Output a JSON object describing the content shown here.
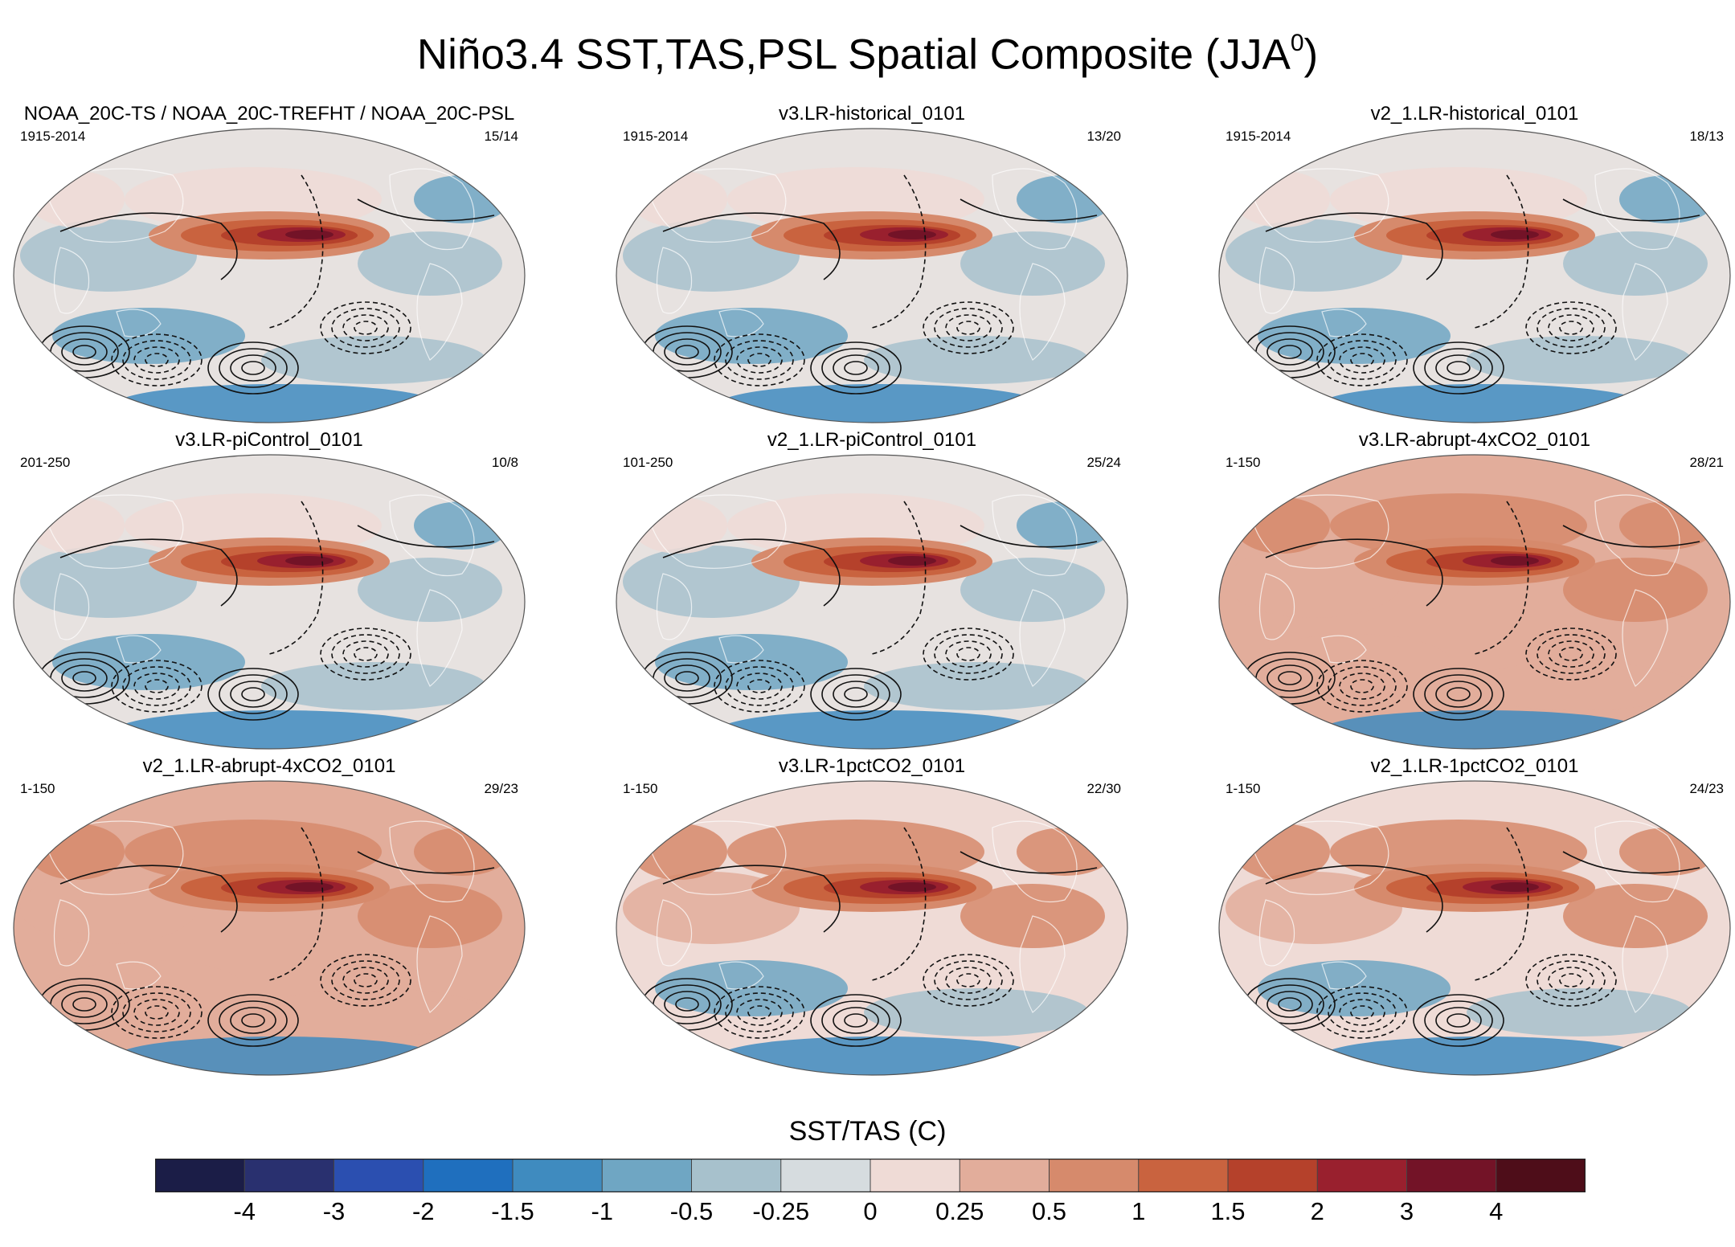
{
  "figure": {
    "title_main": "Niño3.4 SST,TAS,PSL Spatial Composite (JJA",
    "title_sup": "0",
    "title_end": ")"
  },
  "chart_data": {
    "type": "heatmap",
    "description_kind": "composite maps on Robinson-type projection, 3x3 panels, filled SST/TAS anomalies with PSL contours",
    "panels": [
      {
        "title": "NOAA_20C-TS / NOAA_20C-TREFHT / NOAA_20C-PSL",
        "years": "1915-2014",
        "counts": "15/14"
      },
      {
        "title": "v3.LR-historical_0101",
        "years": "1915-2014",
        "counts": "13/20"
      },
      {
        "title": "v2_1.LR-historical_0101",
        "years": "1915-2014",
        "counts": "18/13"
      },
      {
        "title": "v3.LR-piControl_0101",
        "years": "201-250",
        "counts": "10/8"
      },
      {
        "title": "v2_1.LR-piControl_0101",
        "years": "101-250",
        "counts": "25/24"
      },
      {
        "title": "v3.LR-abrupt-4xCO2_0101",
        "years": "1-150",
        "counts": "28/21"
      },
      {
        "title": "v2_1.LR-abrupt-4xCO2_0101",
        "years": "1-150",
        "counts": "29/23"
      },
      {
        "title": "v3.LR-1pctCO2_0101",
        "years": "1-150",
        "counts": "22/30"
      },
      {
        "title": "v2_1.LR-1pctCO2_0101",
        "years": "1-150",
        "counts": "24/23"
      }
    ],
    "colorbar": {
      "title": "SST/TAS (C)",
      "levels": [
        "-4",
        "-3",
        "-2",
        "-1.5",
        "-1",
        "-0.5",
        "-0.25",
        "0",
        "0.25",
        "0.5",
        "1",
        "1.5",
        "2",
        "3",
        "4"
      ],
      "colors": [
        "#1b1d47",
        "#29306f",
        "#2b4fb0",
        "#1f6fbe",
        "#3f8bbf",
        "#6fa6c3",
        "#a7c1cc",
        "#d6dcdf",
        "#efdbd6",
        "#e2ad9b",
        "#d68a6c",
        "#c9633f",
        "#b5412b",
        "#99202e",
        "#731327",
        "#4e0d19"
      ]
    },
    "warming_scale": [
      0.0,
      0.0,
      0.0,
      0.0,
      0.0,
      0.85,
      0.95,
      0.45,
      0.4
    ]
  }
}
